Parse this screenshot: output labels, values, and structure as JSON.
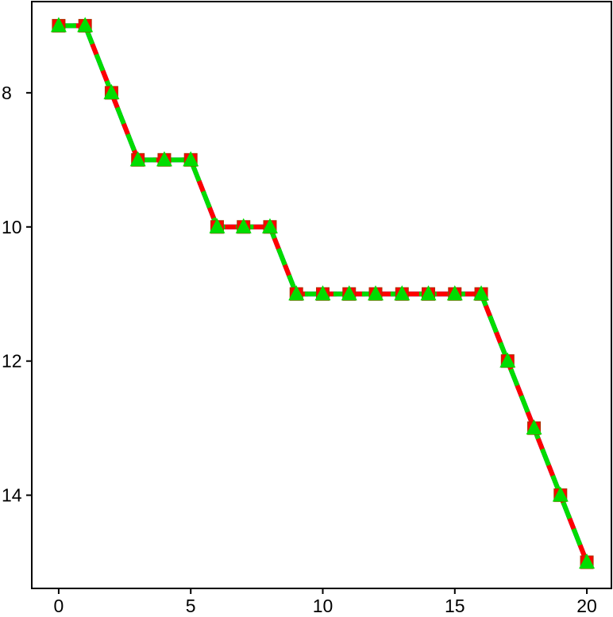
{
  "chart_data": {
    "type": "line",
    "x": [
      0,
      1,
      2,
      3,
      4,
      5,
      6,
      7,
      8,
      9,
      10,
      11,
      12,
      13,
      14,
      15,
      16,
      17,
      18,
      19,
      20
    ],
    "series": [
      {
        "color": "#0000ff",
        "dash": "solid",
        "marker": "none",
        "values": [
          7,
          7,
          8,
          9,
          9,
          9,
          10,
          10,
          10,
          11,
          11,
          11,
          11,
          11,
          11,
          11,
          11,
          12,
          13,
          14,
          15
        ]
      },
      {
        "color": "#ff0000",
        "dash": "dashed",
        "marker": "square",
        "values": [
          7,
          7,
          8,
          9,
          9,
          9,
          10,
          10,
          10,
          11,
          11,
          11,
          11,
          11,
          11,
          11,
          11,
          12,
          13,
          14,
          15
        ]
      },
      {
        "color": "#00dd00",
        "dash": "dashed",
        "marker": "triangle",
        "values": [
          7,
          7,
          8,
          9,
          9,
          9,
          10,
          10,
          10,
          11,
          11,
          11,
          11,
          11,
          11,
          11,
          11,
          12,
          13,
          14,
          15
        ]
      }
    ],
    "xlim": [
      -1.02,
      20.93
    ],
    "xticks": [
      0,
      5,
      10,
      15,
      20
    ],
    "ylim": [
      15.39,
      6.64
    ],
    "yticks": [
      8,
      10,
      12,
      14
    ],
    "y_inverted": true,
    "grid": false
  }
}
